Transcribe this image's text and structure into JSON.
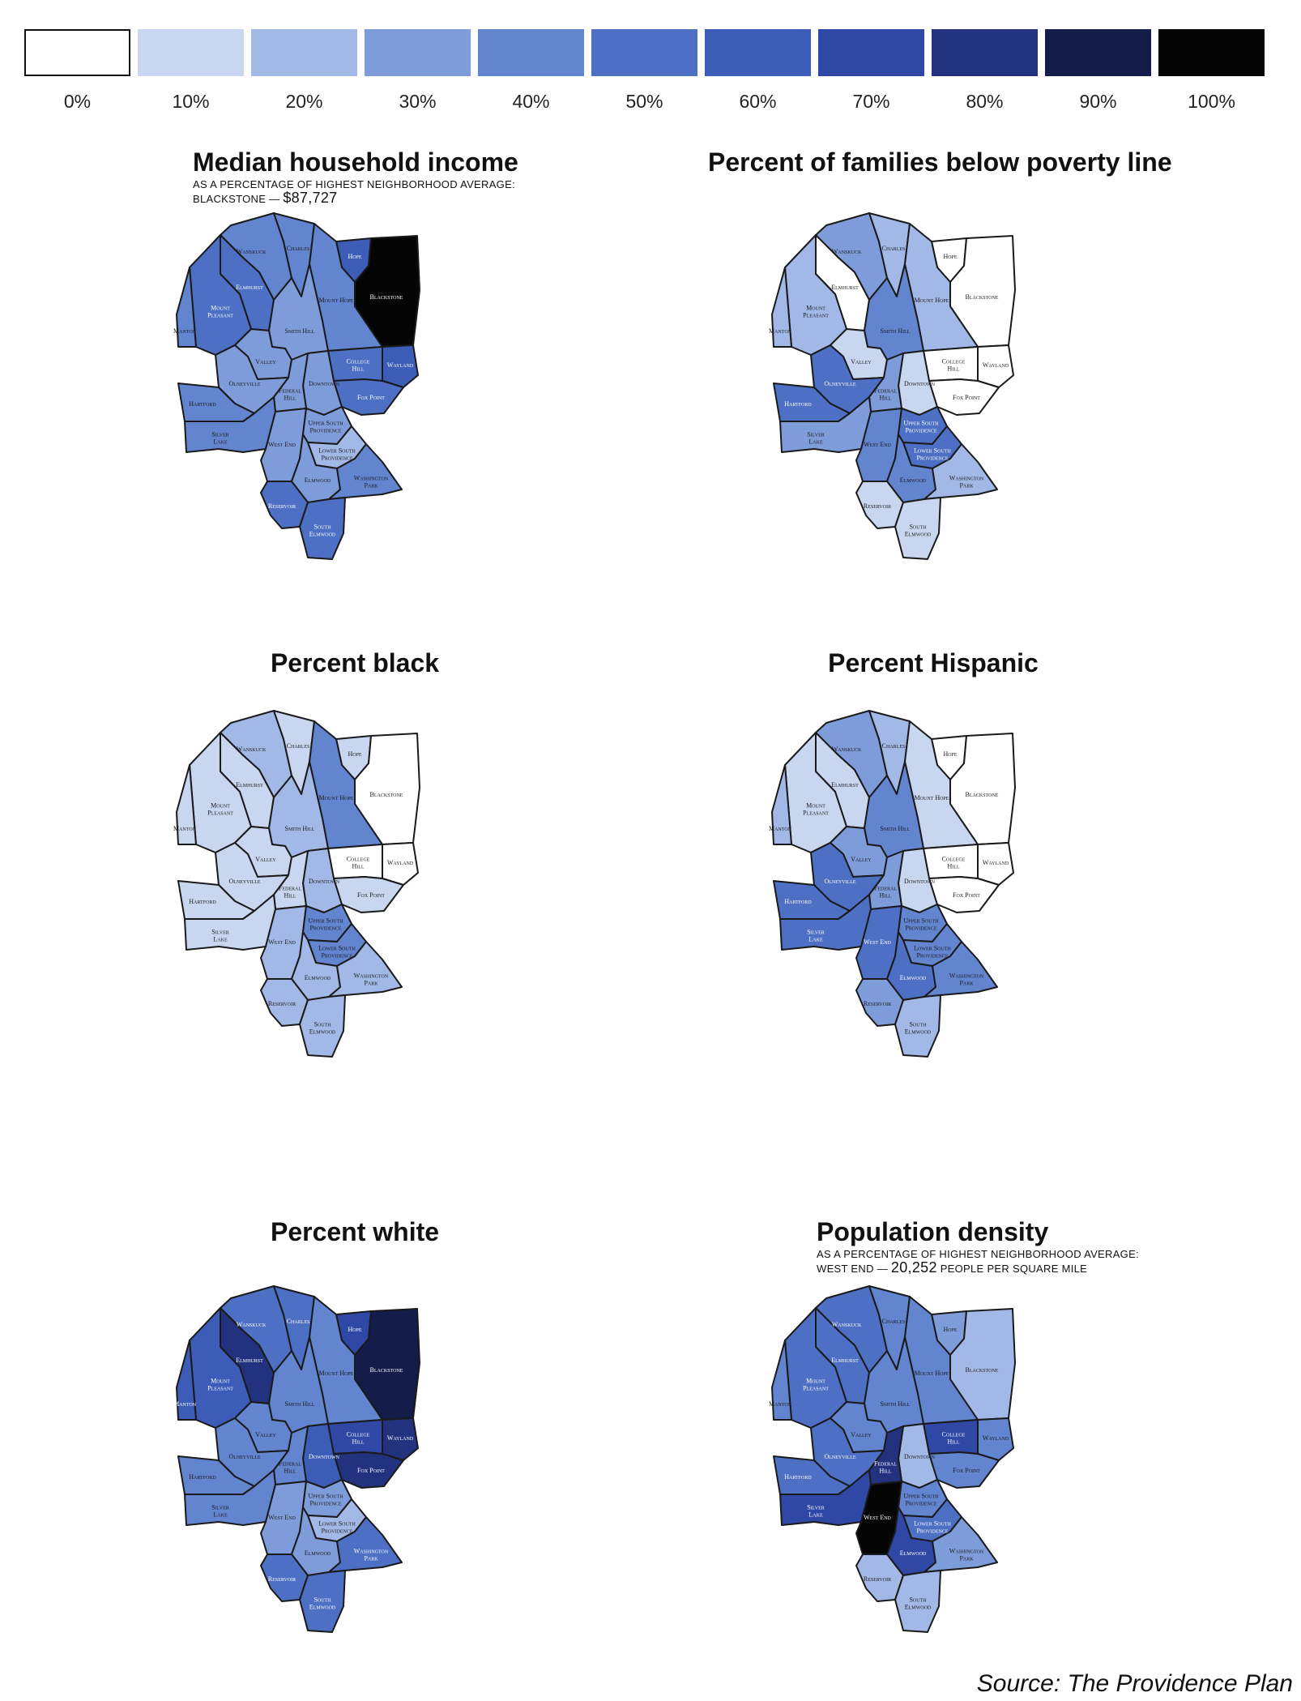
{
  "legend": {
    "labels": [
      "0%",
      "10%",
      "20%",
      "30%",
      "40%",
      "50%",
      "60%",
      "70%",
      "80%",
      "90%",
      "100%"
    ],
    "colors": [
      "#ffffff",
      "#c9d6f0",
      "#a2b8e6",
      "#7f9cda",
      "#6384cf",
      "#4d6fc4",
      "#3d5cb8",
      "#2f48a5",
      "#22327f",
      "#141c49",
      "#050505"
    ]
  },
  "neighborhood_names": {
    "wanskuck": "Wanskuck",
    "charles": "Charles",
    "hope": "Hope",
    "blackstone": "Blackstone",
    "elmhurst": "Elmhurst",
    "mount_hope": "Mount Hope",
    "mount_pleasant": "Mount Pleasant",
    "manton": "Manton",
    "smith_hill": "Smith Hill",
    "college_hill": "College Hill",
    "wayland": "Wayland",
    "valley": "Valley",
    "olneyville": "Olneyville",
    "downtown": "Downtown",
    "federal_hill": "Federal Hill",
    "fox_point": "Fox Point",
    "hartford": "Hartford",
    "silver_lake": "Silver Lake",
    "west_end": "West End",
    "upper_south_providence": "Upper South Providence",
    "lower_south_providence": "Lower South Providence",
    "elmwood": "Elmwood",
    "reservoir": "Reservoir",
    "washington_park": "Washington Park",
    "south_elmwood": "South Elmwood"
  },
  "panels": [
    {
      "title": "Median household income",
      "note_line1": "AS A PERCENTAGE OF HIGHEST NEIGHBORHOOD AVERAGE:",
      "note_line2_prefix": "BLACKSTONE —",
      "note_line2_value": "$87,727",
      "note_line2_suffix": "",
      "levels": {
        "wanskuck": 40,
        "charles": 40,
        "hope": 60,
        "blackstone": 100,
        "elmhurst": 50,
        "mount_hope": 40,
        "mount_pleasant": 50,
        "manton": 40,
        "smith_hill": 30,
        "college_hill": 50,
        "wayland": 60,
        "valley": 30,
        "olneyville": 30,
        "downtown": 30,
        "federal_hill": 30,
        "fox_point": 50,
        "hartford": 40,
        "silver_lake": 40,
        "west_end": 30,
        "upper_south_providence": 30,
        "lower_south_providence": 20,
        "elmwood": 30,
        "reservoir": 50,
        "washington_park": 40,
        "south_elmwood": 50
      }
    },
    {
      "title": "Percent of families below poverty line",
      "levels": {
        "wanskuck": 30,
        "charles": 20,
        "hope": 0,
        "blackstone": 0,
        "elmhurst": 0,
        "mount_hope": 20,
        "mount_pleasant": 20,
        "manton": 20,
        "smith_hill": 40,
        "college_hill": 0,
        "wayland": 0,
        "valley": 10,
        "olneyville": 50,
        "downtown": 10,
        "federal_hill": 30,
        "fox_point": 0,
        "hartford": 50,
        "silver_lake": 30,
        "west_end": 40,
        "upper_south_providence": 50,
        "lower_south_providence": 50,
        "elmwood": 40,
        "reservoir": 10,
        "washington_park": 20,
        "south_elmwood": 10
      }
    },
    {
      "title": "Percent black",
      "levels": {
        "wanskuck": 20,
        "charles": 10,
        "hope": 10,
        "blackstone": 0,
        "elmhurst": 10,
        "mount_hope": 40,
        "mount_pleasant": 10,
        "manton": 10,
        "smith_hill": 20,
        "college_hill": 0,
        "wayland": 0,
        "valley": 10,
        "olneyville": 10,
        "downtown": 20,
        "federal_hill": 10,
        "fox_point": 10,
        "hartford": 10,
        "silver_lake": 10,
        "west_end": 20,
        "upper_south_providence": 40,
        "lower_south_providence": 40,
        "elmwood": 20,
        "reservoir": 20,
        "washington_park": 20,
        "south_elmwood": 20
      }
    },
    {
      "title": "Percent Hispanic",
      "levels": {
        "wanskuck": 30,
        "charles": 20,
        "hope": 0,
        "blackstone": 0,
        "elmhurst": 10,
        "mount_hope": 10,
        "mount_pleasant": 10,
        "manton": 20,
        "smith_hill": 40,
        "college_hill": 0,
        "wayland": 0,
        "valley": 30,
        "olneyville": 50,
        "downtown": 10,
        "federal_hill": 30,
        "fox_point": 0,
        "hartford": 50,
        "silver_lake": 50,
        "west_end": 50,
        "upper_south_providence": 40,
        "lower_south_providence": 40,
        "elmwood": 50,
        "reservoir": 30,
        "washington_park": 40,
        "south_elmwood": 20
      }
    },
    {
      "title": "Percent white",
      "levels": {
        "wanskuck": 50,
        "charles": 50,
        "hope": 70,
        "blackstone": 90,
        "elmhurst": 80,
        "mount_hope": 40,
        "mount_pleasant": 60,
        "manton": 60,
        "smith_hill": 40,
        "college_hill": 70,
        "wayland": 80,
        "valley": 40,
        "olneyville": 40,
        "downtown": 60,
        "federal_hill": 40,
        "fox_point": 80,
        "hartford": 40,
        "silver_lake": 40,
        "west_end": 30,
        "upper_south_providence": 30,
        "lower_south_providence": 20,
        "elmwood": 30,
        "reservoir": 50,
        "washington_park": 50,
        "south_elmwood": 50
      }
    },
    {
      "title": "Population density",
      "note_line1": "AS A PERCENTAGE OF HIGHEST NEIGHBORHOOD AVERAGE:",
      "note_line2_prefix": "WEST END —",
      "note_line2_value": "20,252",
      "note_line2_suffix": "PEOPLE PER SQUARE MILE",
      "levels": {
        "wanskuck": 50,
        "charles": 40,
        "hope": 30,
        "blackstone": 20,
        "elmhurst": 50,
        "mount_hope": 40,
        "mount_pleasant": 50,
        "manton": 40,
        "smith_hill": 40,
        "college_hill": 70,
        "wayland": 40,
        "valley": 40,
        "olneyville": 50,
        "downtown": 20,
        "federal_hill": 80,
        "fox_point": 40,
        "hartford": 50,
        "silver_lake": 70,
        "west_end": 100,
        "upper_south_providence": 40,
        "lower_south_providence": 50,
        "elmwood": 70,
        "reservoir": 20,
        "washington_park": 30,
        "south_elmwood": 20
      }
    }
  ],
  "source": "Source: The Providence Plan"
}
